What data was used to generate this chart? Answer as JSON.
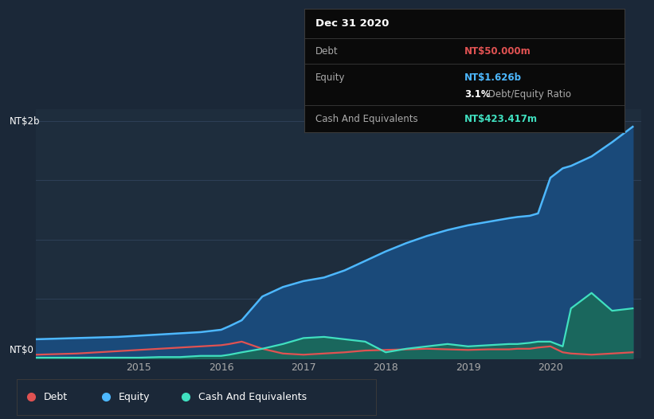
{
  "background_color": "#1b2838",
  "plot_bg_color": "#1e2d3d",
  "grid_color": "#2e4057",
  "title_box": {
    "date": "Dec 31 2020",
    "debt_label": "Debt",
    "debt_value": "NT$50.000m",
    "equity_label": "Equity",
    "equity_value": "NT$1.626b",
    "ratio": "3.1%",
    "ratio_label": " Debt/Equity Ratio",
    "cash_label": "Cash And Equivalents",
    "cash_value": "NT$423.417m"
  },
  "ylabel_top": "NT$2b",
  "ylabel_bottom": "NT$0",
  "x_tick_labels": [
    "2015",
    "2016",
    "2017",
    "2018",
    "2019",
    "2020"
  ],
  "legend": [
    {
      "label": "Debt",
      "color": "#e05252"
    },
    {
      "label": "Equity",
      "color": "#4db8ff"
    },
    {
      "label": "Cash And Equivalents",
      "color": "#40e0c0"
    }
  ],
  "debt_color": "#e05252",
  "equity_color": "#4db8ff",
  "cash_color": "#40e0c0",
  "equity_fill_color": "#1a4a7a",
  "cash_fill_color": "#1a6b5a",
  "x": [
    2013.75,
    2014.0,
    2014.25,
    2014.5,
    2014.75,
    2015.0,
    2015.25,
    2015.5,
    2015.75,
    2016.0,
    2016.1,
    2016.25,
    2016.5,
    2016.75,
    2017.0,
    2017.25,
    2017.5,
    2017.75,
    2018.0,
    2018.25,
    2018.5,
    2018.75,
    2019.0,
    2019.25,
    2019.5,
    2019.6,
    2019.75,
    2019.85,
    2020.0,
    2020.15,
    2020.25,
    2020.5,
    2020.75,
    2021.0
  ],
  "equity": [
    0.16,
    0.165,
    0.17,
    0.175,
    0.18,
    0.19,
    0.2,
    0.21,
    0.22,
    0.24,
    0.27,
    0.32,
    0.52,
    0.6,
    0.65,
    0.68,
    0.74,
    0.82,
    0.9,
    0.97,
    1.03,
    1.08,
    1.12,
    1.15,
    1.18,
    1.19,
    1.2,
    1.22,
    1.52,
    1.6,
    1.62,
    1.7,
    1.82,
    1.95
  ],
  "debt": [
    0.03,
    0.035,
    0.04,
    0.05,
    0.06,
    0.07,
    0.08,
    0.09,
    0.1,
    0.11,
    0.12,
    0.14,
    0.08,
    0.04,
    0.03,
    0.04,
    0.05,
    0.065,
    0.07,
    0.075,
    0.08,
    0.075,
    0.07,
    0.075,
    0.075,
    0.08,
    0.08,
    0.09,
    0.1,
    0.05,
    0.04,
    0.03,
    0.04,
    0.05
  ],
  "cash": [
    0.005,
    0.005,
    0.005,
    0.005,
    0.005,
    0.005,
    0.01,
    0.01,
    0.02,
    0.02,
    0.03,
    0.05,
    0.08,
    0.12,
    0.17,
    0.18,
    0.16,
    0.14,
    0.05,
    0.08,
    0.1,
    0.12,
    0.1,
    0.11,
    0.12,
    0.12,
    0.13,
    0.14,
    0.14,
    0.1,
    0.42,
    0.55,
    0.4,
    0.42
  ]
}
